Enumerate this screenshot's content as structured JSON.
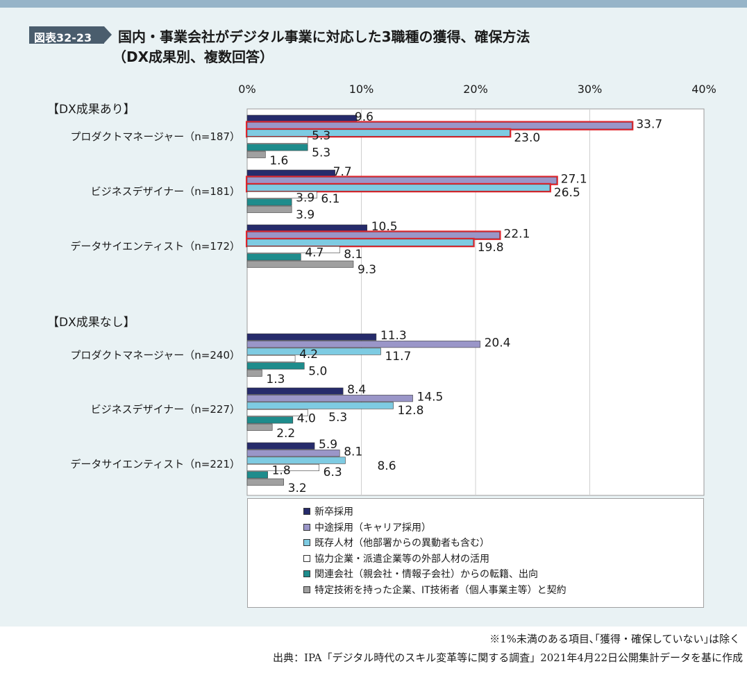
{
  "figure": {
    "tag": "図表32-23",
    "title_line1": "国内・事業会社がデジタル事業に対応した3職種の獲得、確保方法",
    "title_line2": "（DX成果別、複数回答）"
  },
  "chart_data": {
    "type": "bar",
    "orientation": "horizontal",
    "x_ticks": [
      "0%",
      "10%",
      "20%",
      "30%",
      "40%"
    ],
    "xlim": [
      0,
      40
    ],
    "grid": true,
    "groups": [
      {
        "label": "【DX成果あり】",
        "categories": [
          {
            "label": "プロダクトマネージャー（n=187）",
            "values": [
              9.6,
              33.7,
              23.0,
              5.3,
              5.3,
              1.6
            ],
            "highlight": [
              false,
              true,
              true,
              false,
              false,
              false
            ]
          },
          {
            "label": "ビジネスデザイナー（n=181）",
            "values": [
              7.7,
              27.1,
              26.5,
              6.1,
              3.9,
              3.9
            ],
            "highlight": [
              false,
              true,
              true,
              false,
              false,
              false
            ]
          },
          {
            "label": "データサイエンティスト（n=172）",
            "values": [
              10.5,
              22.1,
              19.8,
              8.1,
              4.7,
              9.3
            ],
            "highlight": [
              false,
              true,
              true,
              false,
              false,
              false
            ]
          }
        ]
      },
      {
        "label": "【DX成果なし】",
        "categories": [
          {
            "label": "プロダクトマネージャー（n=240）",
            "values": [
              11.3,
              20.4,
              11.7,
              4.2,
              5.0,
              1.3
            ],
            "highlight": [
              false,
              false,
              false,
              false,
              false,
              false
            ]
          },
          {
            "label": "ビジネスデザイナー（n=227）",
            "values": [
              8.4,
              14.5,
              12.8,
              5.3,
              4.0,
              2.2
            ],
            "highlight": [
              false,
              false,
              false,
              false,
              false,
              false
            ]
          },
          {
            "label": "データサイエンティスト（n=221）",
            "values": [
              5.9,
              8.1,
              8.6,
              6.3,
              1.8,
              3.2
            ],
            "highlight": [
              false,
              false,
              false,
              false,
              false,
              false
            ]
          }
        ]
      }
    ],
    "series": [
      {
        "name": "新卒採用",
        "color": "#262b6b"
      },
      {
        "name": "中途採用（キャリア採用）",
        "color": "#9a96c8"
      },
      {
        "name": "既存人材（他部署からの異動者も含む）",
        "color": "#7ecbe2"
      },
      {
        "name": "協力企業・派遣企業等の外部人材の活用",
        "color": "#ffffff"
      },
      {
        "name": "関連会社（親会社・情報子会社）からの転籍、出向",
        "color": "#1e8c8c"
      },
      {
        "name": "特定技術を持った企業、IT技術者（個人事業主等）と契約",
        "color": "#a0a0a0"
      }
    ],
    "highlight_color": "#e0262e"
  },
  "footer": {
    "note": "※1%未満のある項目､｢獲得・確保していない｣は除く",
    "source": "出典：IPA「デジタル時代のスキル変革等に関する調査」2021年4月22日公開集計データを基に作成"
  }
}
